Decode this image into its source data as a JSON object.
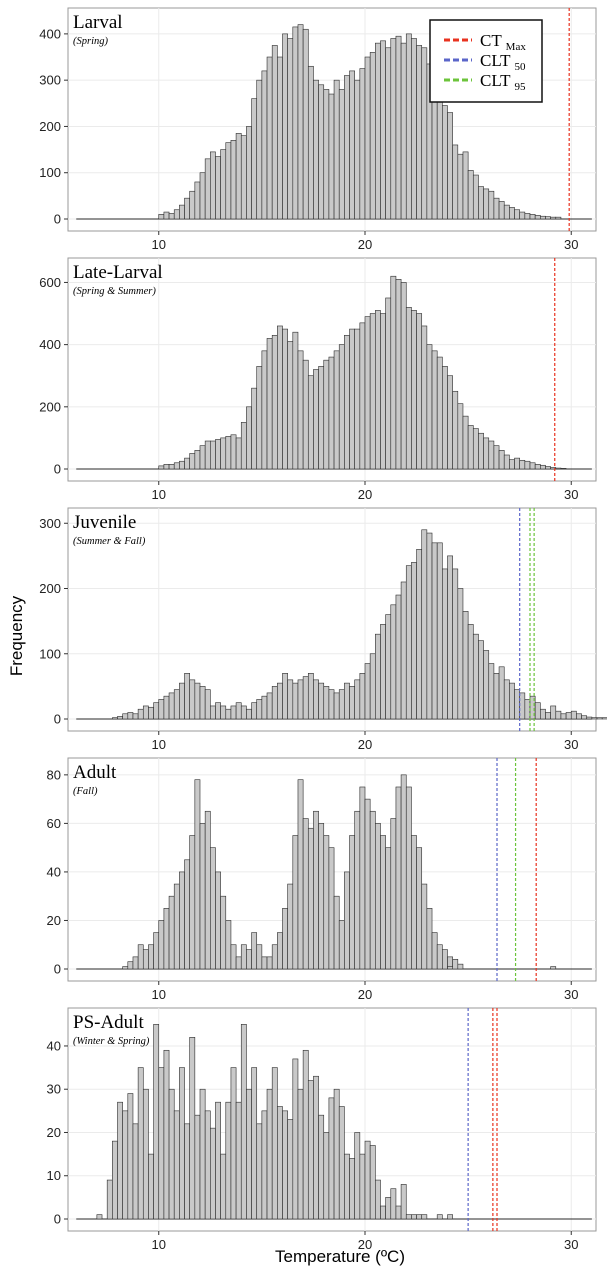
{
  "chart_data": {
    "type": "bar",
    "xlabel": "Temperature (ºC)",
    "ylabel": "Frequency",
    "xlim": [
      5.6,
      31.2
    ],
    "xticks": [
      10,
      20,
      30
    ],
    "bin_start": 6,
    "bin_width": 0.25,
    "legend": {
      "placement": "top-right of first panel",
      "items": [
        {
          "main": "CT",
          "sub": "Max",
          "color": "#e8321f"
        },
        {
          "main": "CLT",
          "sub": "50",
          "color": "#5b66c9"
        },
        {
          "main": "CLT",
          "sub": "95",
          "color": "#6cc43b"
        }
      ]
    },
    "panels": [
      {
        "title": "Larval",
        "subtitle": "(Spring)",
        "ylim": [
          0,
          430
        ],
        "yticks": [
          0,
          100,
          200,
          300,
          400
        ],
        "vlines": [
          {
            "x": 29.9,
            "color": "#e8321f"
          }
        ],
        "bars": [
          {
            "from": 10.0,
            "values": [
              10,
              15,
              12,
              20,
              30,
              45,
              60,
              80,
              100,
              130,
              145,
              135,
              150,
              165,
              170,
              185,
              180,
              200,
              260,
              300,
              320,
              350,
              375,
              350,
              400,
              390,
              415,
              420,
              410,
              330,
              300,
              290,
              280,
              270,
              300,
              280,
              310,
              320,
              300,
              325,
              350,
              360,
              380,
              385,
              370,
              390,
              395,
              380,
              400,
              390,
              375,
              370,
              335,
              320,
              265,
              245,
              230,
              160,
              140,
              145,
              105,
              95,
              70,
              65,
              60,
              45,
              38,
              30,
              25,
              20,
              15,
              12,
              10,
              8,
              6,
              5,
              4,
              4
            ]
          }
        ]
      },
      {
        "title": "Late-Larval",
        "subtitle": "(Spring & Summer)",
        "ylim": [
          0,
          640
        ],
        "yticks": [
          0,
          200,
          400,
          600
        ],
        "vlines": [
          {
            "x": 29.2,
            "color": "#e8321f"
          }
        ],
        "bars": [
          {
            "from": 10.0,
            "values": [
              10,
              15,
              15,
              20,
              25,
              35,
              50,
              60,
              75,
              90,
              90,
              95,
              100,
              105,
              110,
              100,
              150,
              200,
              260,
              330,
              380,
              420,
              430,
              460,
              450,
              410,
              440,
              380,
              350,
              300,
              320,
              330,
              350,
              360,
              380,
              400,
              430,
              450,
              450,
              470,
              490,
              500,
              510,
              500,
              550,
              620,
              610,
              600,
              520,
              510,
              500,
              460,
              400,
              380,
              360,
              330,
              300,
              250,
              210,
              170,
              140,
              130,
              115,
              100,
              90,
              75,
              60,
              45,
              30,
              35,
              28,
              25,
              20,
              15,
              12,
              8,
              5,
              3,
              2
            ]
          }
        ]
      },
      {
        "title": "Juvenile",
        "subtitle": "(Summer & Fall)",
        "ylim": [
          0,
          305
        ],
        "yticks": [
          0,
          100,
          200,
          300
        ],
        "vlines": [
          {
            "x": 27.5,
            "color": "#5b66c9"
          },
          {
            "x": 28.0,
            "color": "#6cc43b"
          },
          {
            "x": 28.2,
            "color": "#6cc43b"
          }
        ],
        "bars": [
          {
            "from": 7.75,
            "values": [
              2,
              4,
              8,
              10,
              8,
              15,
              20,
              18,
              25,
              30,
              35,
              40,
              45,
              55,
              70,
              60,
              55,
              50,
              45,
              20,
              25,
              20,
              15,
              20,
              25,
              20,
              15,
              25,
              30,
              35,
              40,
              50,
              55,
              70,
              60,
              55,
              60,
              65,
              70,
              60,
              55,
              50,
              45,
              40,
              45,
              55,
              50,
              60,
              70,
              85,
              100,
              130,
              145,
              160,
              175,
              190,
              210,
              235,
              240,
              260,
              290,
              285,
              270,
              270,
              230,
              250,
              230,
              200,
              165,
              145,
              130,
              120,
              105,
              85,
              70,
              80,
              60,
              55,
              45,
              40,
              30,
              35,
              25,
              15,
              10,
              20,
              12,
              8,
              10,
              12,
              8,
              5,
              3,
              2,
              2,
              2,
              3
            ]
          }
        ]
      },
      {
        "title": "Adult",
        "subtitle": "(Fall)",
        "ylim": [
          0,
          82
        ],
        "yticks": [
          0,
          20,
          40,
          60,
          80
        ],
        "vlines": [
          {
            "x": 26.4,
            "color": "#5b66c9"
          },
          {
            "x": 27.3,
            "color": "#6cc43b"
          },
          {
            "x": 28.3,
            "color": "#e8321f"
          }
        ],
        "bars": [
          {
            "from": 8.25,
            "values": [
              1,
              3,
              5,
              10,
              8,
              10,
              15,
              20,
              25,
              30,
              35,
              40,
              45,
              55,
              78,
              60,
              65,
              50,
              40,
              30,
              20,
              10,
              5,
              10,
              8,
              15,
              10,
              5,
              5,
              10,
              15,
              25,
              35,
              55,
              78,
              62,
              58,
              65,
              60,
              55,
              50,
              30,
              20,
              40,
              55,
              65,
              75,
              70,
              65,
              60,
              55,
              50,
              62,
              75,
              80,
              75,
              55,
              50,
              35,
              25,
              15,
              10,
              8,
              5,
              4,
              2
            ]
          },
          {
            "from": 24.0,
            "values": [
              1
            ]
          },
          {
            "from": 29.0,
            "values": [
              1
            ]
          }
        ]
      },
      {
        "title": "PS-Adult",
        "subtitle": "(Winter & Spring)",
        "ylim": [
          0,
          46
        ],
        "yticks": [
          0,
          10,
          20,
          30,
          40
        ],
        "vlines": [
          {
            "x": 25.0,
            "color": "#5b66c9"
          },
          {
            "x": 26.2,
            "color": "#e8321f"
          },
          {
            "x": 26.4,
            "color": "#e8321f"
          }
        ],
        "bars": [
          {
            "from": 7.0,
            "values": [
              1,
              0,
              9,
              18,
              27,
              25,
              29,
              22,
              35,
              30,
              15,
              45,
              35,
              39,
              30,
              25,
              35,
              22,
              42,
              24,
              30,
              25,
              21,
              27,
              15,
              27,
              35,
              27,
              45,
              30,
              35,
              22,
              25,
              30,
              35,
              26,
              25,
              23,
              37,
              30,
              39,
              32,
              33,
              24,
              20,
              28,
              30,
              26,
              15,
              14,
              20,
              15,
              18,
              17,
              9,
              3,
              5,
              7,
              3,
              8
            ]
          },
          {
            "from": 22.0,
            "values": [
              1,
              1,
              1,
              1,
              0,
              0,
              1,
              0,
              1
            ]
          }
        ]
      }
    ]
  }
}
